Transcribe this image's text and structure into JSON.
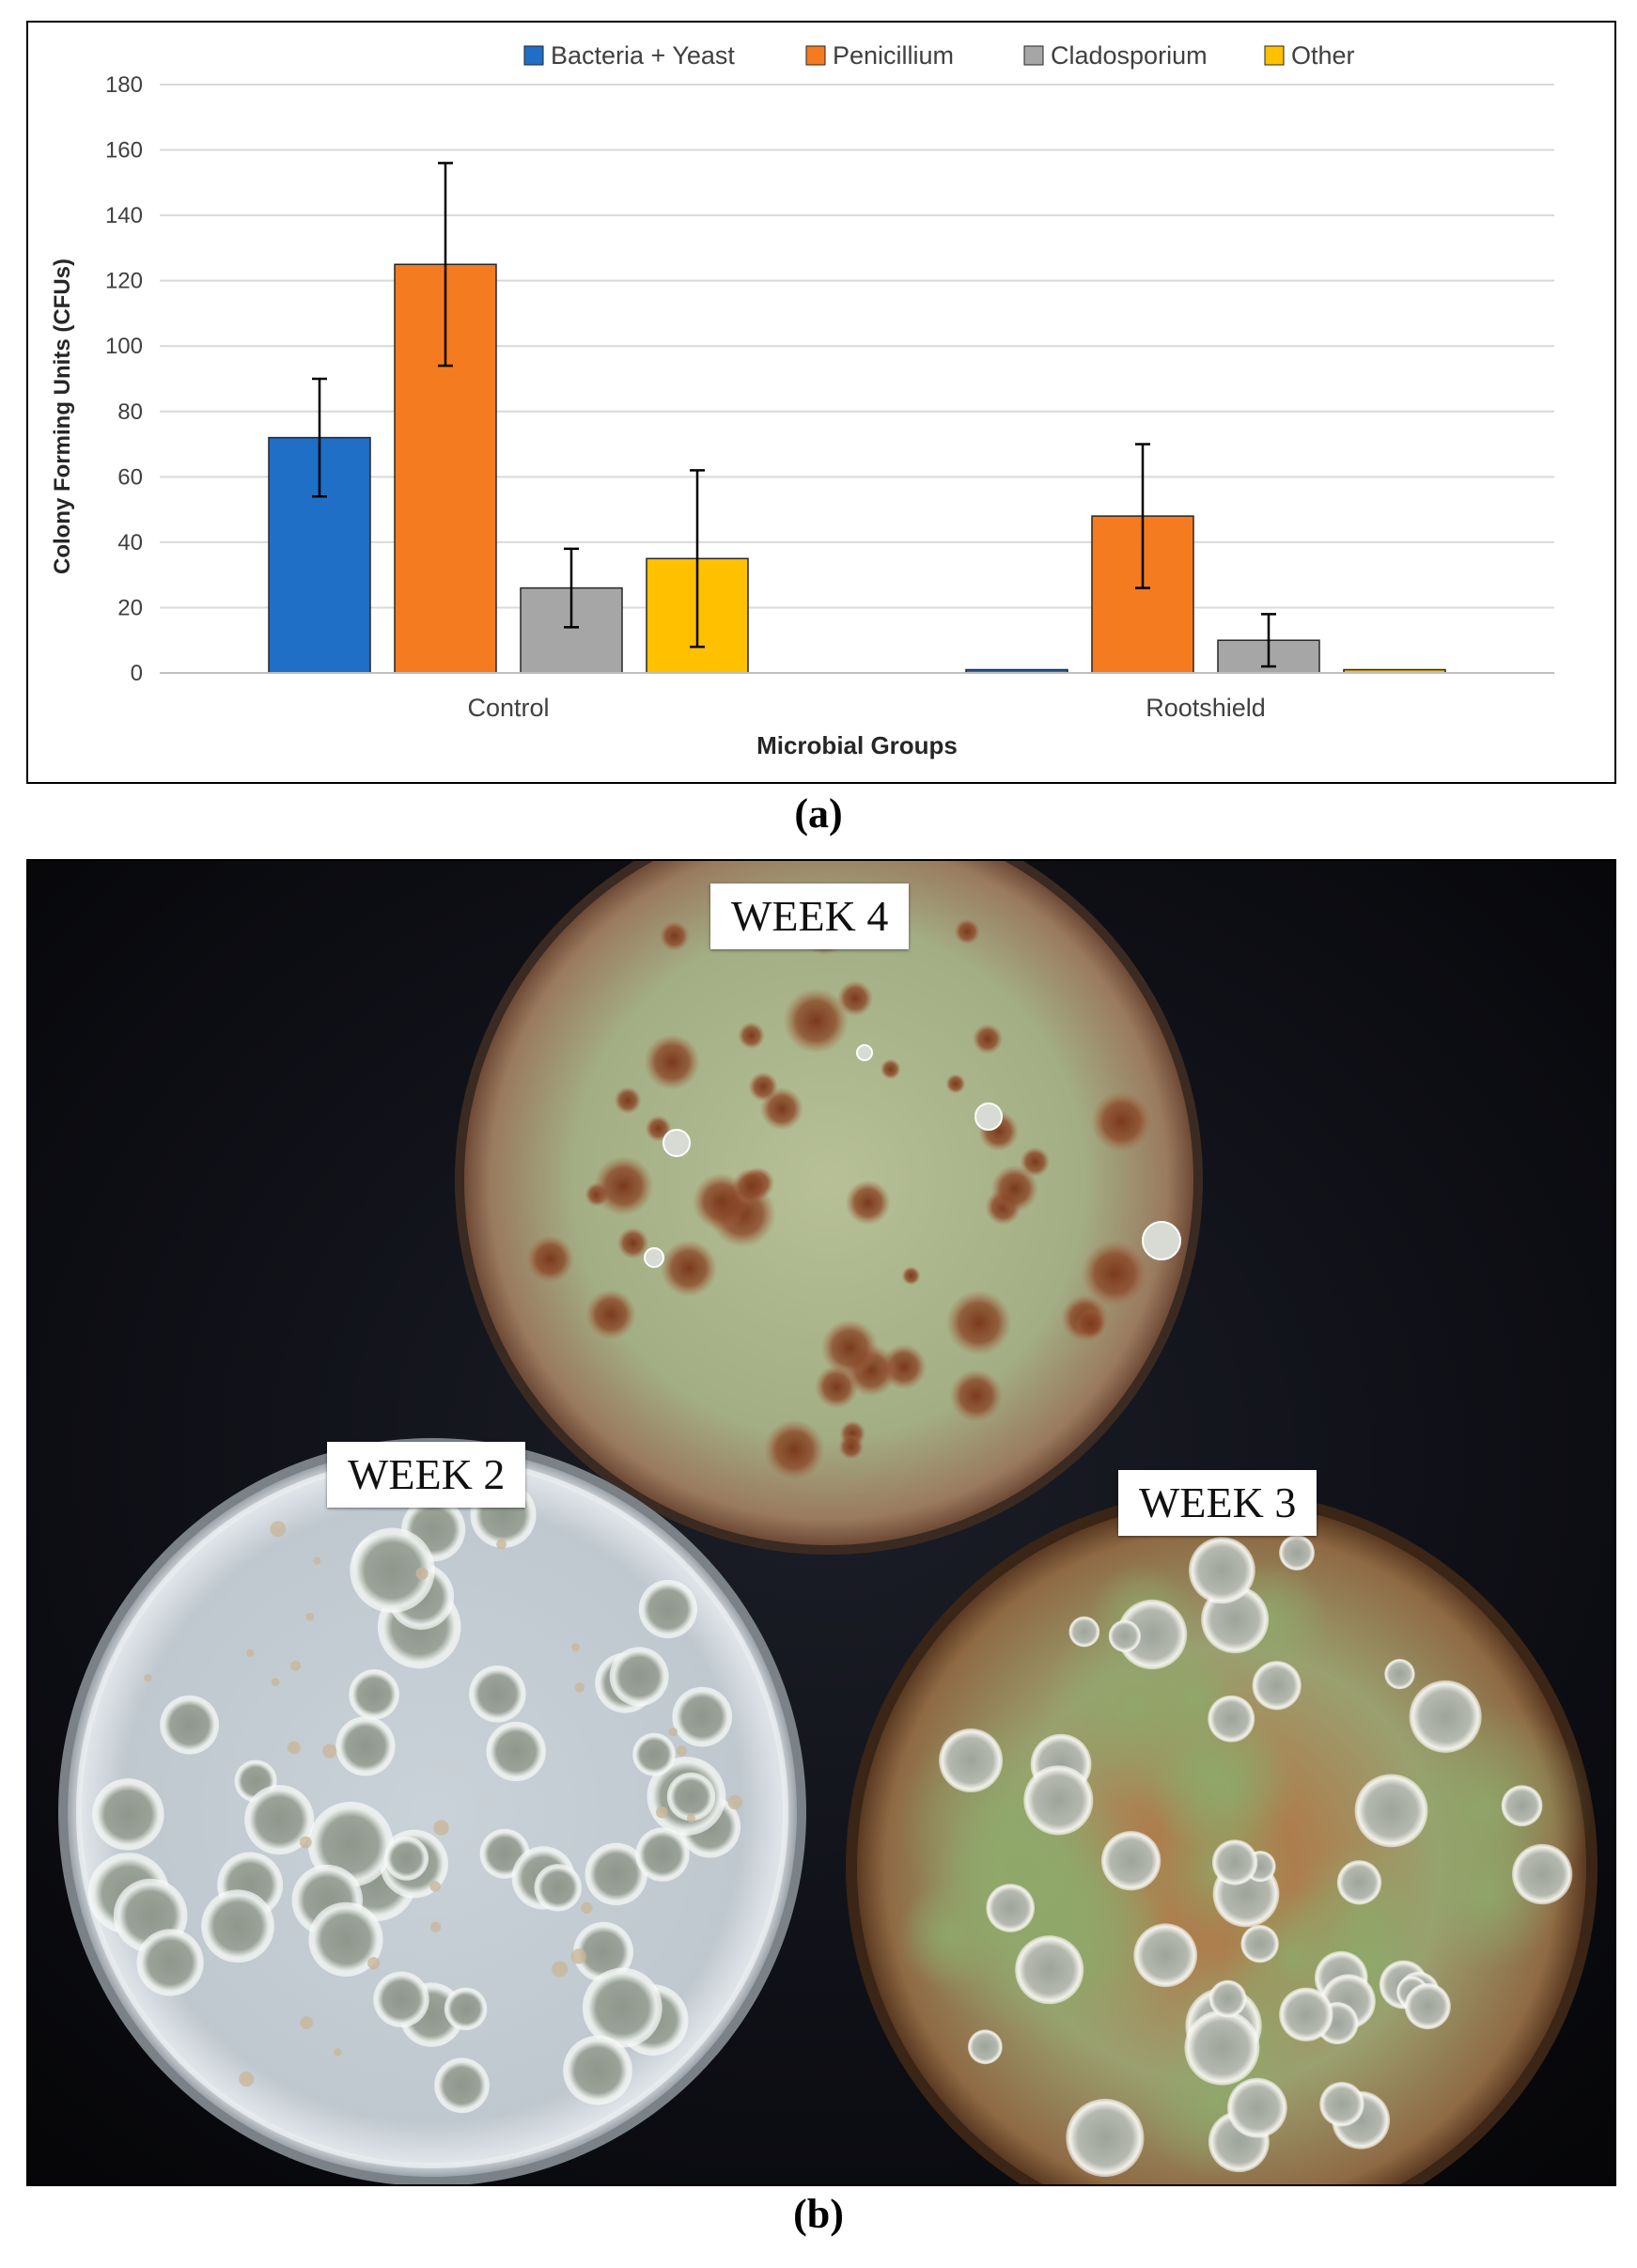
{
  "chart_data": {
    "type": "bar",
    "title": "",
    "xlabel": "Microbial Groups",
    "ylabel": "Colony Forming Units (CFUs)",
    "ylim": [
      0,
      180
    ],
    "yticks": [
      0,
      20,
      40,
      60,
      80,
      100,
      120,
      140,
      160,
      180
    ],
    "grid": "horizontal",
    "legend_position": "top",
    "categories": [
      "Control",
      "Rootshield"
    ],
    "series": [
      {
        "name": "Bacteria + Yeast",
        "color": "#1f6fc6",
        "values": [
          72,
          1
        ],
        "errors": [
          18,
          0
        ]
      },
      {
        "name": "Penicillium",
        "color": "#f47b20",
        "values": [
          125,
          48
        ],
        "errors": [
          31,
          22
        ]
      },
      {
        "name": "Cladosporium",
        "color": "#a6a6a6",
        "values": [
          26,
          10
        ],
        "errors": [
          12,
          8
        ]
      },
      {
        "name": "Other",
        "color": "#ffc000",
        "values": [
          35,
          1
        ],
        "errors": [
          27,
          0
        ]
      }
    ]
  },
  "captions": {
    "a": "(a)",
    "b": "(b)"
  },
  "photo": {
    "labels": {
      "week4": "WEEK 4",
      "week2": "WEEK 2",
      "week3": "WEEK 3"
    }
  }
}
